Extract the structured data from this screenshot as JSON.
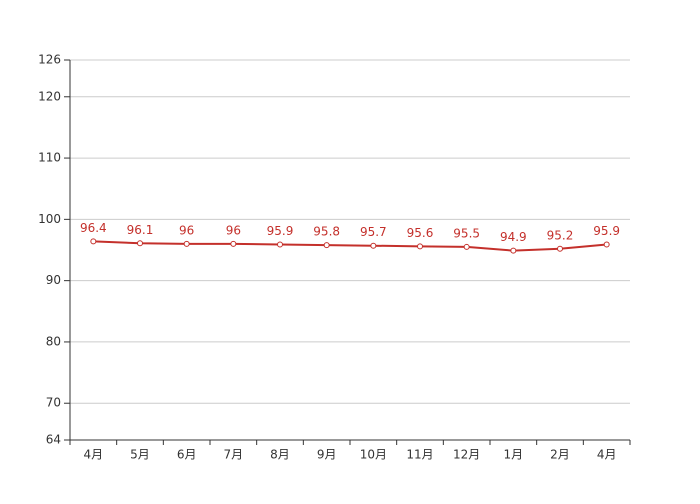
{
  "chart_data": {
    "type": "line",
    "categories": [
      "4月",
      "5月",
      "6月",
      "7月",
      "8月",
      "9月",
      "10月",
      "11月",
      "12月",
      "1月",
      "2月",
      "4月"
    ],
    "series": [
      {
        "color": "#c4302b",
        "values": [
          96.4,
          96.1,
          96,
          96,
          95.9,
          95.8,
          95.7,
          95.6,
          95.5,
          94.9,
          95.2,
          95.9
        ]
      }
    ],
    "ylim": [
      64,
      126
    ],
    "yticks": [
      64,
      70,
      80,
      90,
      100,
      110,
      120,
      126
    ],
    "grid": true
  }
}
